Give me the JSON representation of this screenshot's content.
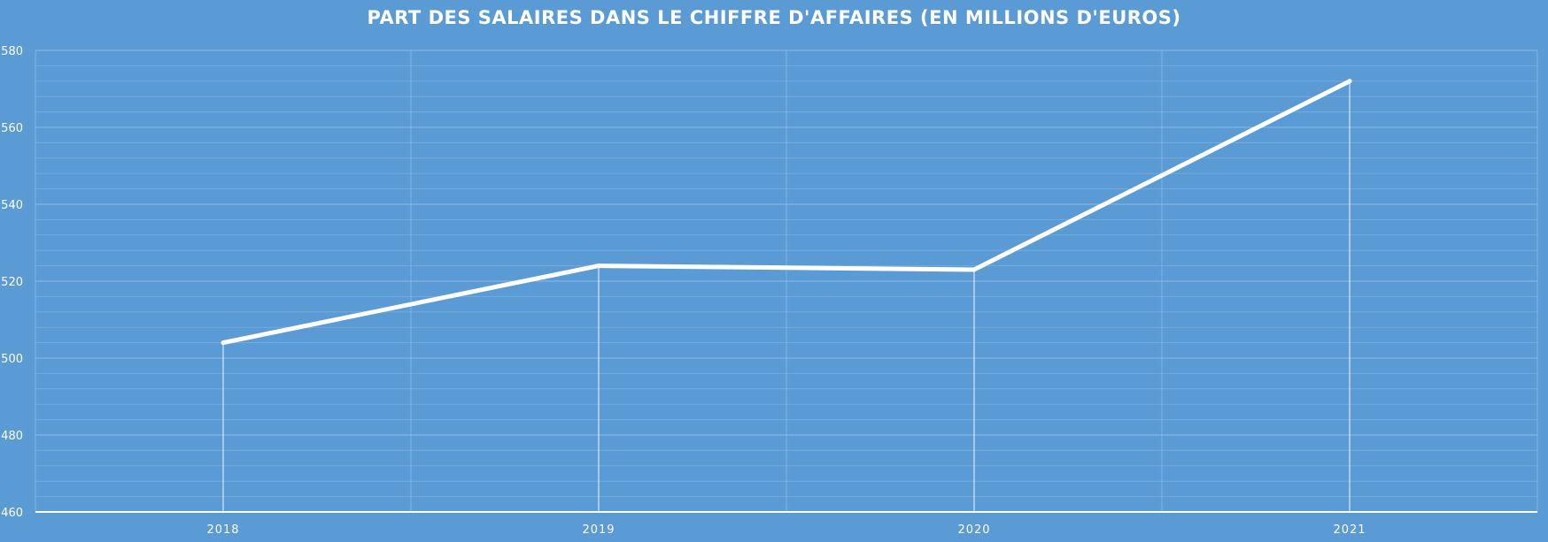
{
  "chart_data": {
    "type": "line",
    "title": "PART DES SALAIRES DANS LE CHIFFRE D'AFFAIRES (EN MILLIONS D'EUROS)",
    "categories": [
      "2018",
      "2019",
      "2020",
      "2021"
    ],
    "series": [
      {
        "values": [
          504,
          524,
          523,
          572
        ]
      }
    ],
    "xlabel": "",
    "ylabel": "",
    "ylim": [
      460,
      580
    ],
    "yticks": [
      460,
      480,
      500,
      520,
      540,
      560,
      580
    ],
    "ytick_labels": [
      "460",
      "480",
      "500",
      "520",
      "540",
      "560",
      "580"
    ],
    "grid": true,
    "drop_lines": true,
    "legend": "none",
    "colors": {
      "background": "#5b9bd5",
      "line": "#ffffff"
    }
  }
}
